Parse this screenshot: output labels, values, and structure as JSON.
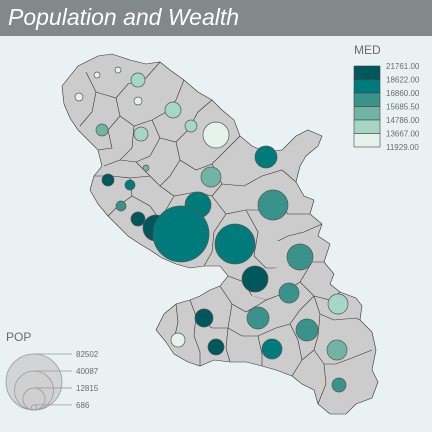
{
  "title": "Population and Wealth",
  "colors": {
    "background": "#e9f1f3",
    "title_bar": "#828989",
    "land": "#cccccc",
    "border": "#333333"
  },
  "legend_med": {
    "title": "MED",
    "classes": [
      {
        "label": "21761.00",
        "color": "#00575c"
      },
      {
        "label": "18622.00",
        "color": "#007b7b"
      },
      {
        "label": "16860.00",
        "color": "#3a938a"
      },
      {
        "label": "15685.50",
        "color": "#72b4a4"
      },
      {
        "label": "14786.00",
        "color": "#a6d6c5"
      },
      {
        "label": "13667.00",
        "color": "#e4f2ea"
      },
      {
        "label": "11929.00",
        "color": null
      }
    ]
  },
  "legend_pop": {
    "title": "POP",
    "values": [
      82502,
      40087,
      12815,
      686
    ]
  },
  "map": {
    "communes_medians": [
      {
        "cls": 5
      },
      {
        "cls": 5
      },
      {
        "cls": 4
      },
      {
        "cls": 5
      },
      {
        "cls": 5
      },
      {
        "cls": 4
      },
      {
        "cls": 3
      },
      {
        "cls": 4
      },
      {
        "cls": 5
      },
      {
        "cls": 4
      },
      {
        "cls": 1
      },
      {
        "cls": 3
      },
      {
        "cls": 0
      },
      {
        "cls": 1
      },
      {
        "cls": 3
      },
      {
        "cls": 2
      },
      {
        "cls": 0
      },
      {
        "cls": 0
      },
      {
        "cls": 1
      },
      {
        "cls": 1
      },
      {
        "cls": 1
      },
      {
        "cls": 2
      },
      {
        "cls": 0
      },
      {
        "cls": 2
      },
      {
        "cls": 2
      },
      {
        "cls": 4
      },
      {
        "cls": 0
      },
      {
        "cls": 2
      },
      {
        "cls": 5
      },
      {
        "cls": 0
      },
      {
        "cls": 1
      },
      {
        "cls": 2
      },
      {
        "cls": 3
      },
      {
        "cls": 2
      }
    ]
  }
}
